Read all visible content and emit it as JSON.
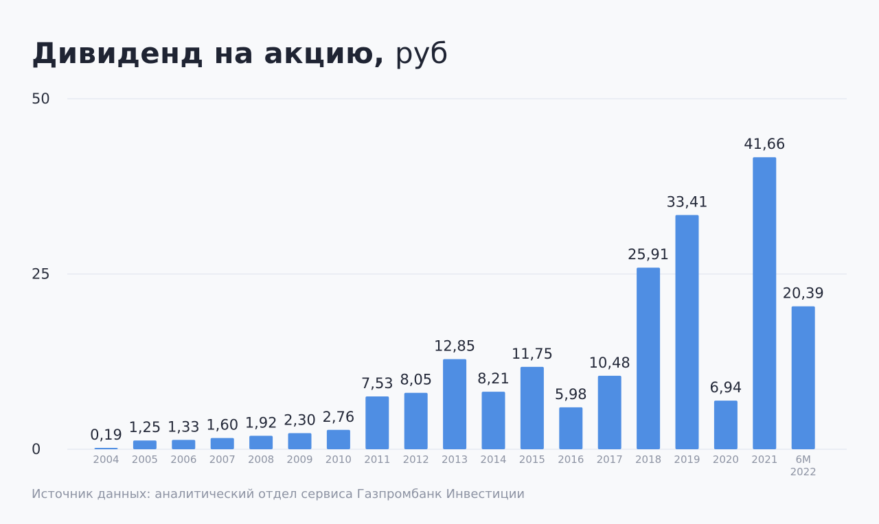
{
  "chart_data": {
    "type": "bar",
    "title": "Дивиденд на акцию,",
    "title_unit": "руб",
    "categories": [
      "2004",
      "2005",
      "2006",
      "2007",
      "2008",
      "2009",
      "2010",
      "2011",
      "2012",
      "2013",
      "2014",
      "2015",
      "2016",
      "2017",
      "2018",
      "2019",
      "2020",
      "2021",
      "6M\n2022"
    ],
    "values": [
      0.19,
      1.25,
      1.33,
      1.6,
      1.92,
      2.3,
      2.76,
      7.53,
      8.05,
      12.85,
      8.21,
      11.75,
      5.98,
      10.48,
      25.91,
      33.41,
      6.94,
      41.66,
      20.39
    ],
    "data_labels": [
      "0,19",
      "1,25",
      "1,33",
      "1,60",
      "1,92",
      "2,30",
      "2,76",
      "7,53",
      "8,05",
      "12,85",
      "8,21",
      "11,75",
      "5,98",
      "10,48",
      "25,91",
      "33,41",
      "6,94",
      "41,66",
      "20,39"
    ],
    "ylim": [
      0,
      50
    ],
    "yticks": [
      0,
      25,
      50
    ],
    "xlabel": "",
    "ylabel": "",
    "grid": true,
    "legend": "none",
    "bar_color": "#4f8ee3",
    "source": "Источник данных: аналитический отдел сервиса Газпромбанк Инвестиции"
  }
}
